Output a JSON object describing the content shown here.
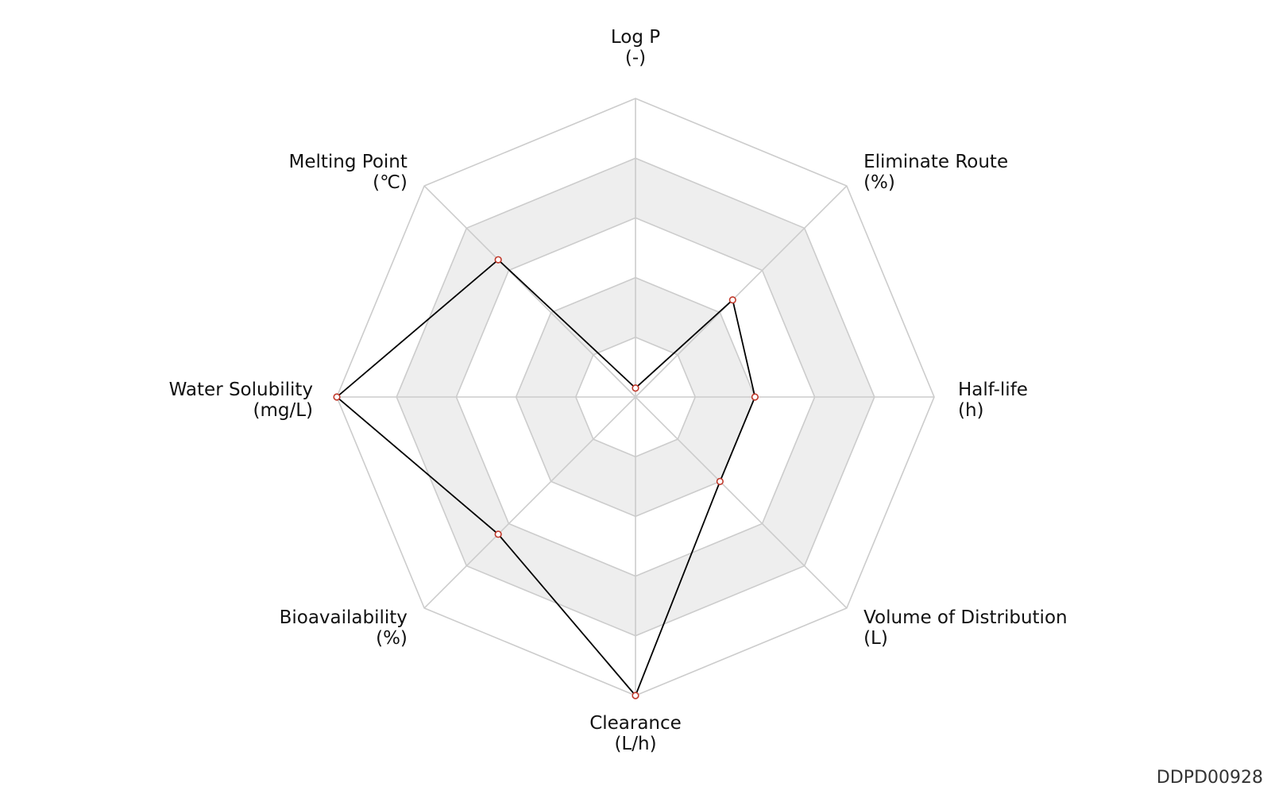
{
  "chart_data": {
    "type": "radar",
    "axes": [
      {
        "name": "Log P",
        "unit": "(-)"
      },
      {
        "name": "Eliminate Route",
        "unit": "(%)"
      },
      {
        "name": "Half-life",
        "unit": "(h)"
      },
      {
        "name": "Volume of Distribution",
        "unit": "(L)"
      },
      {
        "name": "Clearance",
        "unit": "(L/h)"
      },
      {
        "name": "Bioavailability",
        "unit": "(%)"
      },
      {
        "name": "Water Solubility",
        "unit": "(mg/L)"
      },
      {
        "name": "Melting Point",
        "unit": "(℃)"
      }
    ],
    "rings": 5,
    "range": [
      0,
      1
    ],
    "values": [
      0.03,
      0.46,
      0.4,
      0.4,
      1.0,
      0.65,
      1.0,
      0.65
    ],
    "colors": {
      "line": "#000000",
      "marker_stroke": "#c0392b",
      "marker_fill": "#ffffff",
      "grid": "#cccccc",
      "band": "#eeeeee"
    }
  },
  "identifier": "DDPD00928"
}
